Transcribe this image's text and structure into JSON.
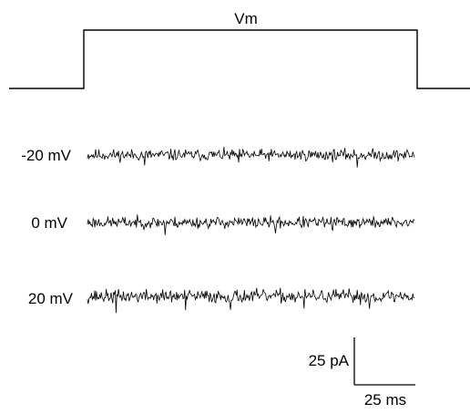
{
  "chart_data": {
    "type": "line",
    "title": "Vm",
    "voltage_protocol": {
      "label": "Vm",
      "levels": [
        {
          "phase": "pre",
          "level": "low"
        },
        {
          "phase": "pulse",
          "level": "high"
        },
        {
          "phase": "post",
          "level": "low"
        }
      ]
    },
    "series": [
      {
        "name": "-20 mV",
        "baseline_pA": 0,
        "noise_pA": 3,
        "seed": 11,
        "event_indices": [
          70,
          185,
          330
        ]
      },
      {
        "name": "0 mV",
        "baseline_pA": 0,
        "noise_pA": 3,
        "seed": 23,
        "event_indices": [
          95,
          230,
          300
        ]
      },
      {
        "name": "20 mV",
        "baseline_pA": 0,
        "noise_pA": 3.5,
        "seed": 37,
        "event_indices": [
          35,
          120,
          175,
          265,
          345
        ]
      }
    ],
    "scale_bar": {
      "current": {
        "value": 25,
        "unit": "pA",
        "label": "25 pA"
      },
      "time": {
        "value": 25,
        "unit": "ms",
        "label": "25 ms"
      }
    },
    "colors": {
      "trace": "#000000",
      "background": "#ffffff"
    }
  }
}
